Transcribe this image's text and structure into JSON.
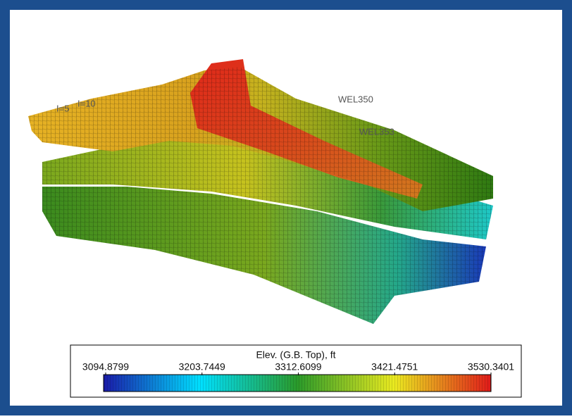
{
  "colorbar": {
    "title": "Elev. (G.B. Top), ft",
    "ticks": [
      3094.8799,
      3203.7449,
      3312.6099,
      3421.4751,
      3530.3401
    ]
  },
  "labels": {
    "wells": [
      "WEL350",
      "WEL353"
    ],
    "grid_indices": [
      "I=5",
      "I=10"
    ]
  }
}
